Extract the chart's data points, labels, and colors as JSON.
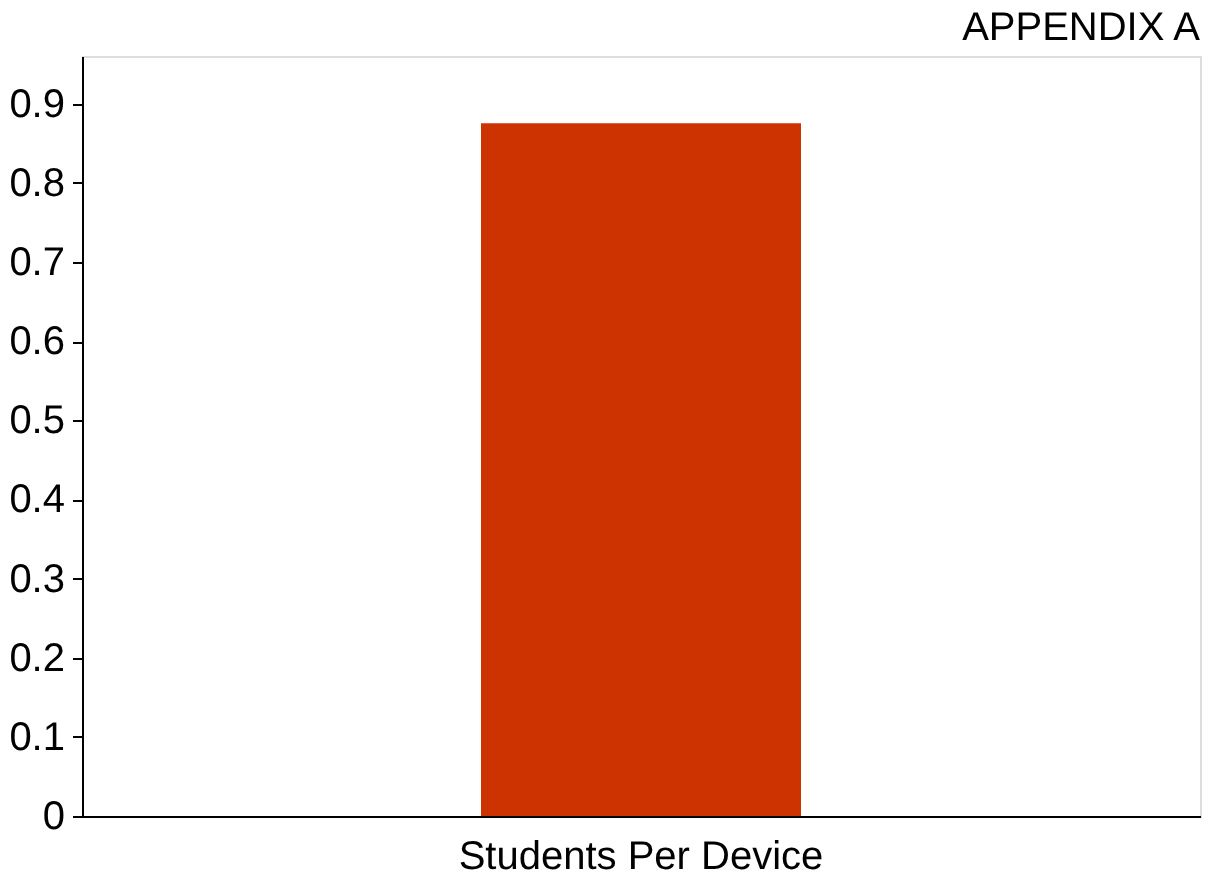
{
  "chart_data": {
    "type": "bar",
    "title": "APPENDIX A",
    "categories": [
      "Students Per Device"
    ],
    "values": [
      0.875
    ],
    "color": "#cc3300",
    "ylim": [
      0,
      0.96
    ],
    "yticks": [
      0,
      0.1,
      0.2,
      0.3,
      0.4,
      0.5,
      0.6,
      0.7,
      0.8,
      0.9
    ],
    "grid": false
  }
}
